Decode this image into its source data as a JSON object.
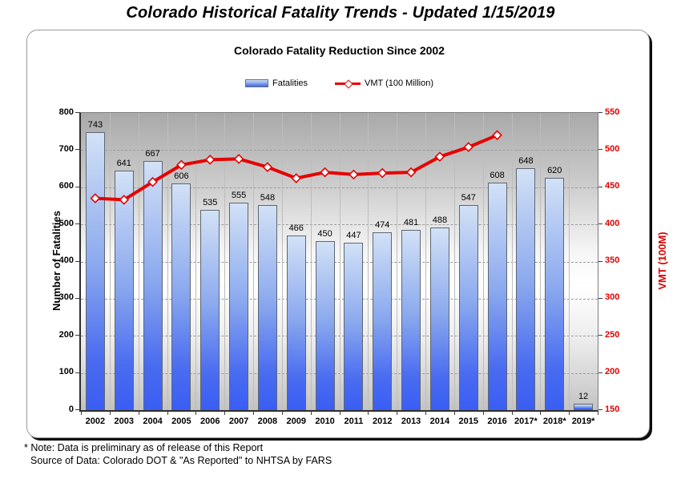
{
  "page_title": "Colorado Historical Fatality Trends - Updated 1/15/2019",
  "chart_data": {
    "type": "bar",
    "title": "Colorado Fatality Reduction Since 2002",
    "categories": [
      "2002",
      "2003",
      "2004",
      "2005",
      "2006",
      "2007",
      "2008",
      "2009",
      "2010",
      "2011",
      "2012",
      "2013",
      "2014",
      "2015",
      "2016",
      "2017*",
      "2018*",
      "2019*"
    ],
    "series": [
      {
        "name": "Fatalities",
        "type": "bar",
        "axis": "left",
        "values": [
          743,
          641,
          667,
          606,
          535,
          555,
          548,
          466,
          450,
          447,
          474,
          481,
          488,
          547,
          608,
          648,
          620,
          12
        ]
      },
      {
        "name": "VMT (100 Million)",
        "type": "line",
        "axis": "right",
        "values": [
          434,
          432,
          456,
          479,
          486,
          487,
          476,
          461,
          469,
          466,
          468,
          469,
          490,
          503,
          519,
          null,
          null,
          null
        ]
      }
    ],
    "left_axis": {
      "label": "Number of Fatalities",
      "min": 0,
      "max": 800,
      "step": 100,
      "ticks": [
        0,
        100,
        200,
        300,
        400,
        500,
        600,
        700,
        800
      ]
    },
    "right_axis": {
      "label": "VMT (100M)",
      "min": 150,
      "max": 550,
      "step": 50,
      "ticks": [
        150,
        200,
        250,
        300,
        350,
        400,
        450,
        500,
        550
      ]
    },
    "legend_position": "top-center",
    "grid": true,
    "colors": {
      "bar_top": "#d2e1f6",
      "bar_bottom": "#3a5ef4",
      "line": "#e60000",
      "right_axis_text": "#e00000",
      "marker_fill": "#ffffff"
    }
  },
  "legend": {
    "fatalities_label": "Fatalities",
    "vmt_label": "VMT (100 Million)"
  },
  "footnotes": {
    "line1": "* Note: Data is preliminary as of release of this Report",
    "line2": "Source of Data: Colorado DOT & \"As Reported\" to NHTSA by FARS"
  }
}
